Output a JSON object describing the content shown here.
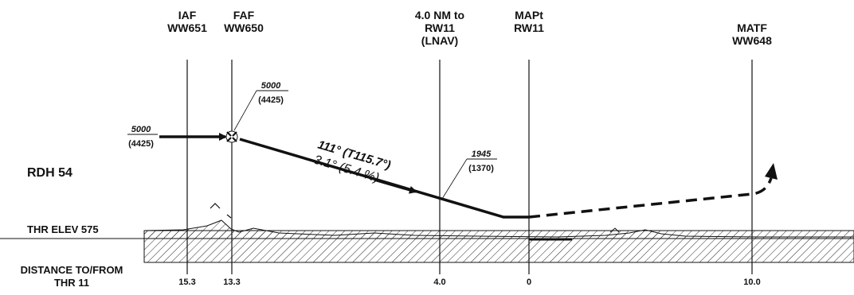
{
  "fixes": {
    "iaf": {
      "l1": "IAF",
      "l2": "WW651"
    },
    "faf": {
      "l1": "FAF",
      "l2": "WW650"
    },
    "sdf": {
      "l1": "4.0 NM to",
      "l2": "RW11",
      "l3": "(LNAV)"
    },
    "mapt": {
      "l1": "MAPt",
      "l2": "RW11"
    },
    "matf": {
      "l1": "MATF",
      "l2": "WW648"
    }
  },
  "altitudes": {
    "initial": {
      "msl": "5000",
      "agl": "(4425)"
    },
    "faf": {
      "msl": "5000",
      "agl": "(4425)"
    },
    "stepdown": {
      "msl": "1945",
      "agl": "(1370)"
    }
  },
  "final_course": {
    "course": "111° (T115.7°)",
    "angle": "3.1° (5.4 %)"
  },
  "rdh": "RDH 54",
  "thr_elev": "THR ELEV 575",
  "distance_label": {
    "l1": "DISTANCE TO/FROM",
    "l2": "THR 11"
  },
  "distances": {
    "iaf": "15.3",
    "faf": "13.3",
    "sdf": "4.0",
    "mapt": "0",
    "matf": "10.0"
  },
  "colors": {
    "ink": "#111111",
    "background": "#ffffff"
  }
}
